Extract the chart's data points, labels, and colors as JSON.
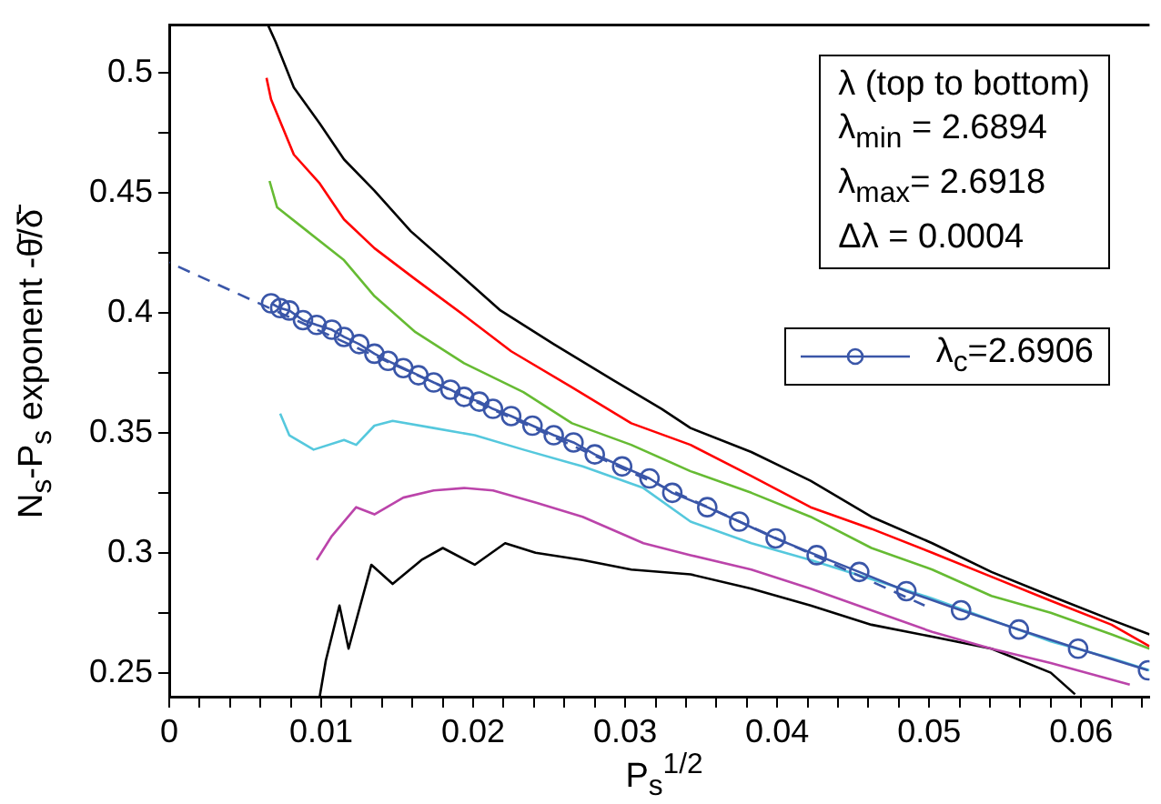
{
  "chart_data": {
    "type": "line",
    "xlabel": "P$_{s}$$^{1/2}$",
    "ylabel": "N$_{s}$-P$_{s}$ exponent -θ̄/δ̄",
    "xlim": [
      0,
      0.0645
    ],
    "ylim": [
      0.24,
      0.52
    ],
    "xticks": [
      0,
      {
        "value": 0.002,
        "label": null
      },
      {
        "value": 0.004,
        "label": null
      },
      {
        "value": 0.006,
        "label": null
      },
      {
        "value": 0.008,
        "label": null
      },
      0.01,
      {
        "value": 0.012,
        "label": null
      },
      {
        "value": 0.014,
        "label": null
      },
      {
        "value": 0.016,
        "label": null
      },
      {
        "value": 0.018,
        "label": null
      },
      0.02,
      {
        "value": 0.022,
        "label": null
      },
      {
        "value": 0.024,
        "label": null
      },
      {
        "value": 0.026,
        "label": null
      },
      {
        "value": 0.028,
        "label": null
      },
      0.03,
      {
        "value": 0.032,
        "label": null
      },
      {
        "value": 0.034,
        "label": null
      },
      {
        "value": 0.036,
        "label": null
      },
      {
        "value": 0.038,
        "label": null
      },
      0.04,
      {
        "value": 0.042,
        "label": null
      },
      {
        "value": 0.044,
        "label": null
      },
      {
        "value": 0.046,
        "label": null
      },
      {
        "value": 0.048,
        "label": null
      },
      0.05,
      {
        "value": 0.052,
        "label": null
      },
      {
        "value": 0.054,
        "label": null
      },
      {
        "value": 0.056,
        "label": null
      },
      {
        "value": 0.058,
        "label": null
      },
      0.06,
      {
        "value": 0.062,
        "label": null
      },
      {
        "value": 0.064,
        "label": null
      }
    ],
    "yticks": [
      0.25,
      {
        "value": 0.275,
        "label": null
      },
      0.3,
      {
        "value": 0.325,
        "label": null
      },
      0.35,
      {
        "value": 0.375,
        "label": null
      },
      0.4,
      {
        "value": 0.425,
        "label": null
      },
      0.45,
      {
        "value": 0.475,
        "label": null
      },
      0.5
    ],
    "grid": false,
    "legend": "top right",
    "marker": "none",
    "line_style": "solid",
    "annotations": [
      "λ (top to bottom)",
      "λ$_{min}$ = 2.6894",
      "λ$_{max}$= 2.6918",
      "Δλ  = 0.0004"
    ],
    "series": [
      {
        "color": "#000000",
        "x": [
          0.0065,
          0.007,
          0.0082,
          0.0099,
          0.0115,
          0.0135,
          0.0159,
          0.0186,
          0.0218,
          0.0253,
          0.0292,
          0.0324,
          0.0343,
          0.0383,
          0.0422,
          0.0462,
          0.0502,
          0.0541,
          0.058,
          0.062,
          0.0645
        ],
        "values": [
          0.52,
          0.513,
          0.494,
          0.479,
          0.464,
          0.451,
          0.434,
          0.419,
          0.401,
          0.387,
          0.372,
          0.36,
          0.352,
          0.342,
          0.33,
          0.315,
          0.304,
          0.292,
          0.282,
          0.272,
          0.266
        ]
      },
      {
        "color": "#ff0000",
        "x": [
          0.0064,
          0.0067,
          0.0082,
          0.0099,
          0.0115,
          0.0135,
          0.0162,
          0.0194,
          0.0225,
          0.0265,
          0.0304,
          0.0343,
          0.0383,
          0.0422,
          0.0462,
          0.0502,
          0.0541,
          0.058,
          0.062,
          0.0645
        ],
        "values": [
          0.498,
          0.489,
          0.466,
          0.454,
          0.439,
          0.427,
          0.414,
          0.399,
          0.384,
          0.369,
          0.354,
          0.345,
          0.332,
          0.319,
          0.31,
          0.3,
          0.29,
          0.28,
          0.27,
          0.261
        ]
      },
      {
        "color": "#66bb33",
        "x": [
          0.0066,
          0.0071,
          0.0091,
          0.0115,
          0.0135,
          0.0162,
          0.0194,
          0.0233,
          0.0265,
          0.0304,
          0.0343,
          0.0383,
          0.0422,
          0.0462,
          0.0502,
          0.0541,
          0.058,
          0.062,
          0.0645
        ],
        "values": [
          0.455,
          0.444,
          0.434,
          0.422,
          0.407,
          0.392,
          0.379,
          0.367,
          0.354,
          0.345,
          0.334,
          0.325,
          0.315,
          0.302,
          0.293,
          0.282,
          0.275,
          0.266,
          0.26
        ]
      },
      {
        "name": "λ$_{c}$=2.6906",
        "color": "#3a56a8",
        "marker": "circle",
        "x": [
          0.0067,
          0.0073,
          0.0079,
          0.0088,
          0.0097,
          0.0107,
          0.0115,
          0.0125,
          0.0135,
          0.0144,
          0.0154,
          0.0164,
          0.0174,
          0.0185,
          0.0194,
          0.0204,
          0.0213,
          0.0225,
          0.0239,
          0.0253,
          0.0266,
          0.028,
          0.0298,
          0.0316,
          0.0331,
          0.0354,
          0.0375,
          0.0399,
          0.0426,
          0.0454,
          0.0485,
          0.0521,
          0.0559,
          0.0598,
          0.0644
        ],
        "values": [
          0.404,
          0.402,
          0.401,
          0.397,
          0.395,
          0.393,
          0.39,
          0.387,
          0.383,
          0.38,
          0.377,
          0.374,
          0.371,
          0.368,
          0.365,
          0.363,
          0.36,
          0.357,
          0.353,
          0.349,
          0.346,
          0.341,
          0.336,
          0.331,
          0.325,
          0.319,
          0.313,
          0.306,
          0.299,
          0.292,
          0.284,
          0.276,
          0.268,
          0.26,
          0.251
        ]
      },
      {
        "color": "#3a56a8",
        "line_style": "dashed",
        "x": [
          0,
          0.0497
        ],
        "values": [
          0.421,
          0.278
        ]
      },
      {
        "color": "#55c8dd",
        "x": [
          0.0073,
          0.0079,
          0.0095,
          0.0115,
          0.0123,
          0.0135,
          0.0147,
          0.0174,
          0.0201,
          0.0233,
          0.0272,
          0.0312,
          0.0343,
          0.0383,
          0.0422,
          0.0462,
          0.0502,
          0.0541,
          0.058,
          0.062,
          0.0645
        ],
        "values": [
          0.358,
          0.349,
          0.343,
          0.347,
          0.345,
          0.353,
          0.355,
          0.352,
          0.349,
          0.343,
          0.336,
          0.327,
          0.313,
          0.304,
          0.297,
          0.289,
          0.281,
          0.272,
          0.263,
          0.256,
          0.251
        ]
      },
      {
        "color": "#bb44aa",
        "x": [
          0.0097,
          0.0107,
          0.0123,
          0.0135,
          0.0154,
          0.0174,
          0.0194,
          0.0213,
          0.0241,
          0.0272,
          0.0312,
          0.0343,
          0.0383,
          0.0422,
          0.0462,
          0.0502,
          0.0541,
          0.058,
          0.0632
        ],
        "values": [
          0.297,
          0.307,
          0.319,
          0.316,
          0.323,
          0.326,
          0.327,
          0.326,
          0.321,
          0.315,
          0.304,
          0.299,
          0.293,
          0.285,
          0.276,
          0.267,
          0.26,
          0.254,
          0.245
        ]
      },
      {
        "color": "#000000",
        "x": [
          0.0099,
          0.0103,
          0.0112,
          0.0118,
          0.0133,
          0.0147,
          0.0166,
          0.018,
          0.0201,
          0.0221,
          0.0241,
          0.0272,
          0.0304,
          0.0343,
          0.0383,
          0.0422,
          0.0462,
          0.0502,
          0.0541,
          0.058,
          0.0596
        ],
        "values": [
          0.24,
          0.255,
          0.278,
          0.26,
          0.295,
          0.287,
          0.297,
          0.302,
          0.295,
          0.304,
          0.3,
          0.297,
          0.293,
          0.291,
          0.285,
          0.278,
          0.27,
          0.265,
          0.26,
          0.25,
          0.241
        ]
      }
    ]
  }
}
